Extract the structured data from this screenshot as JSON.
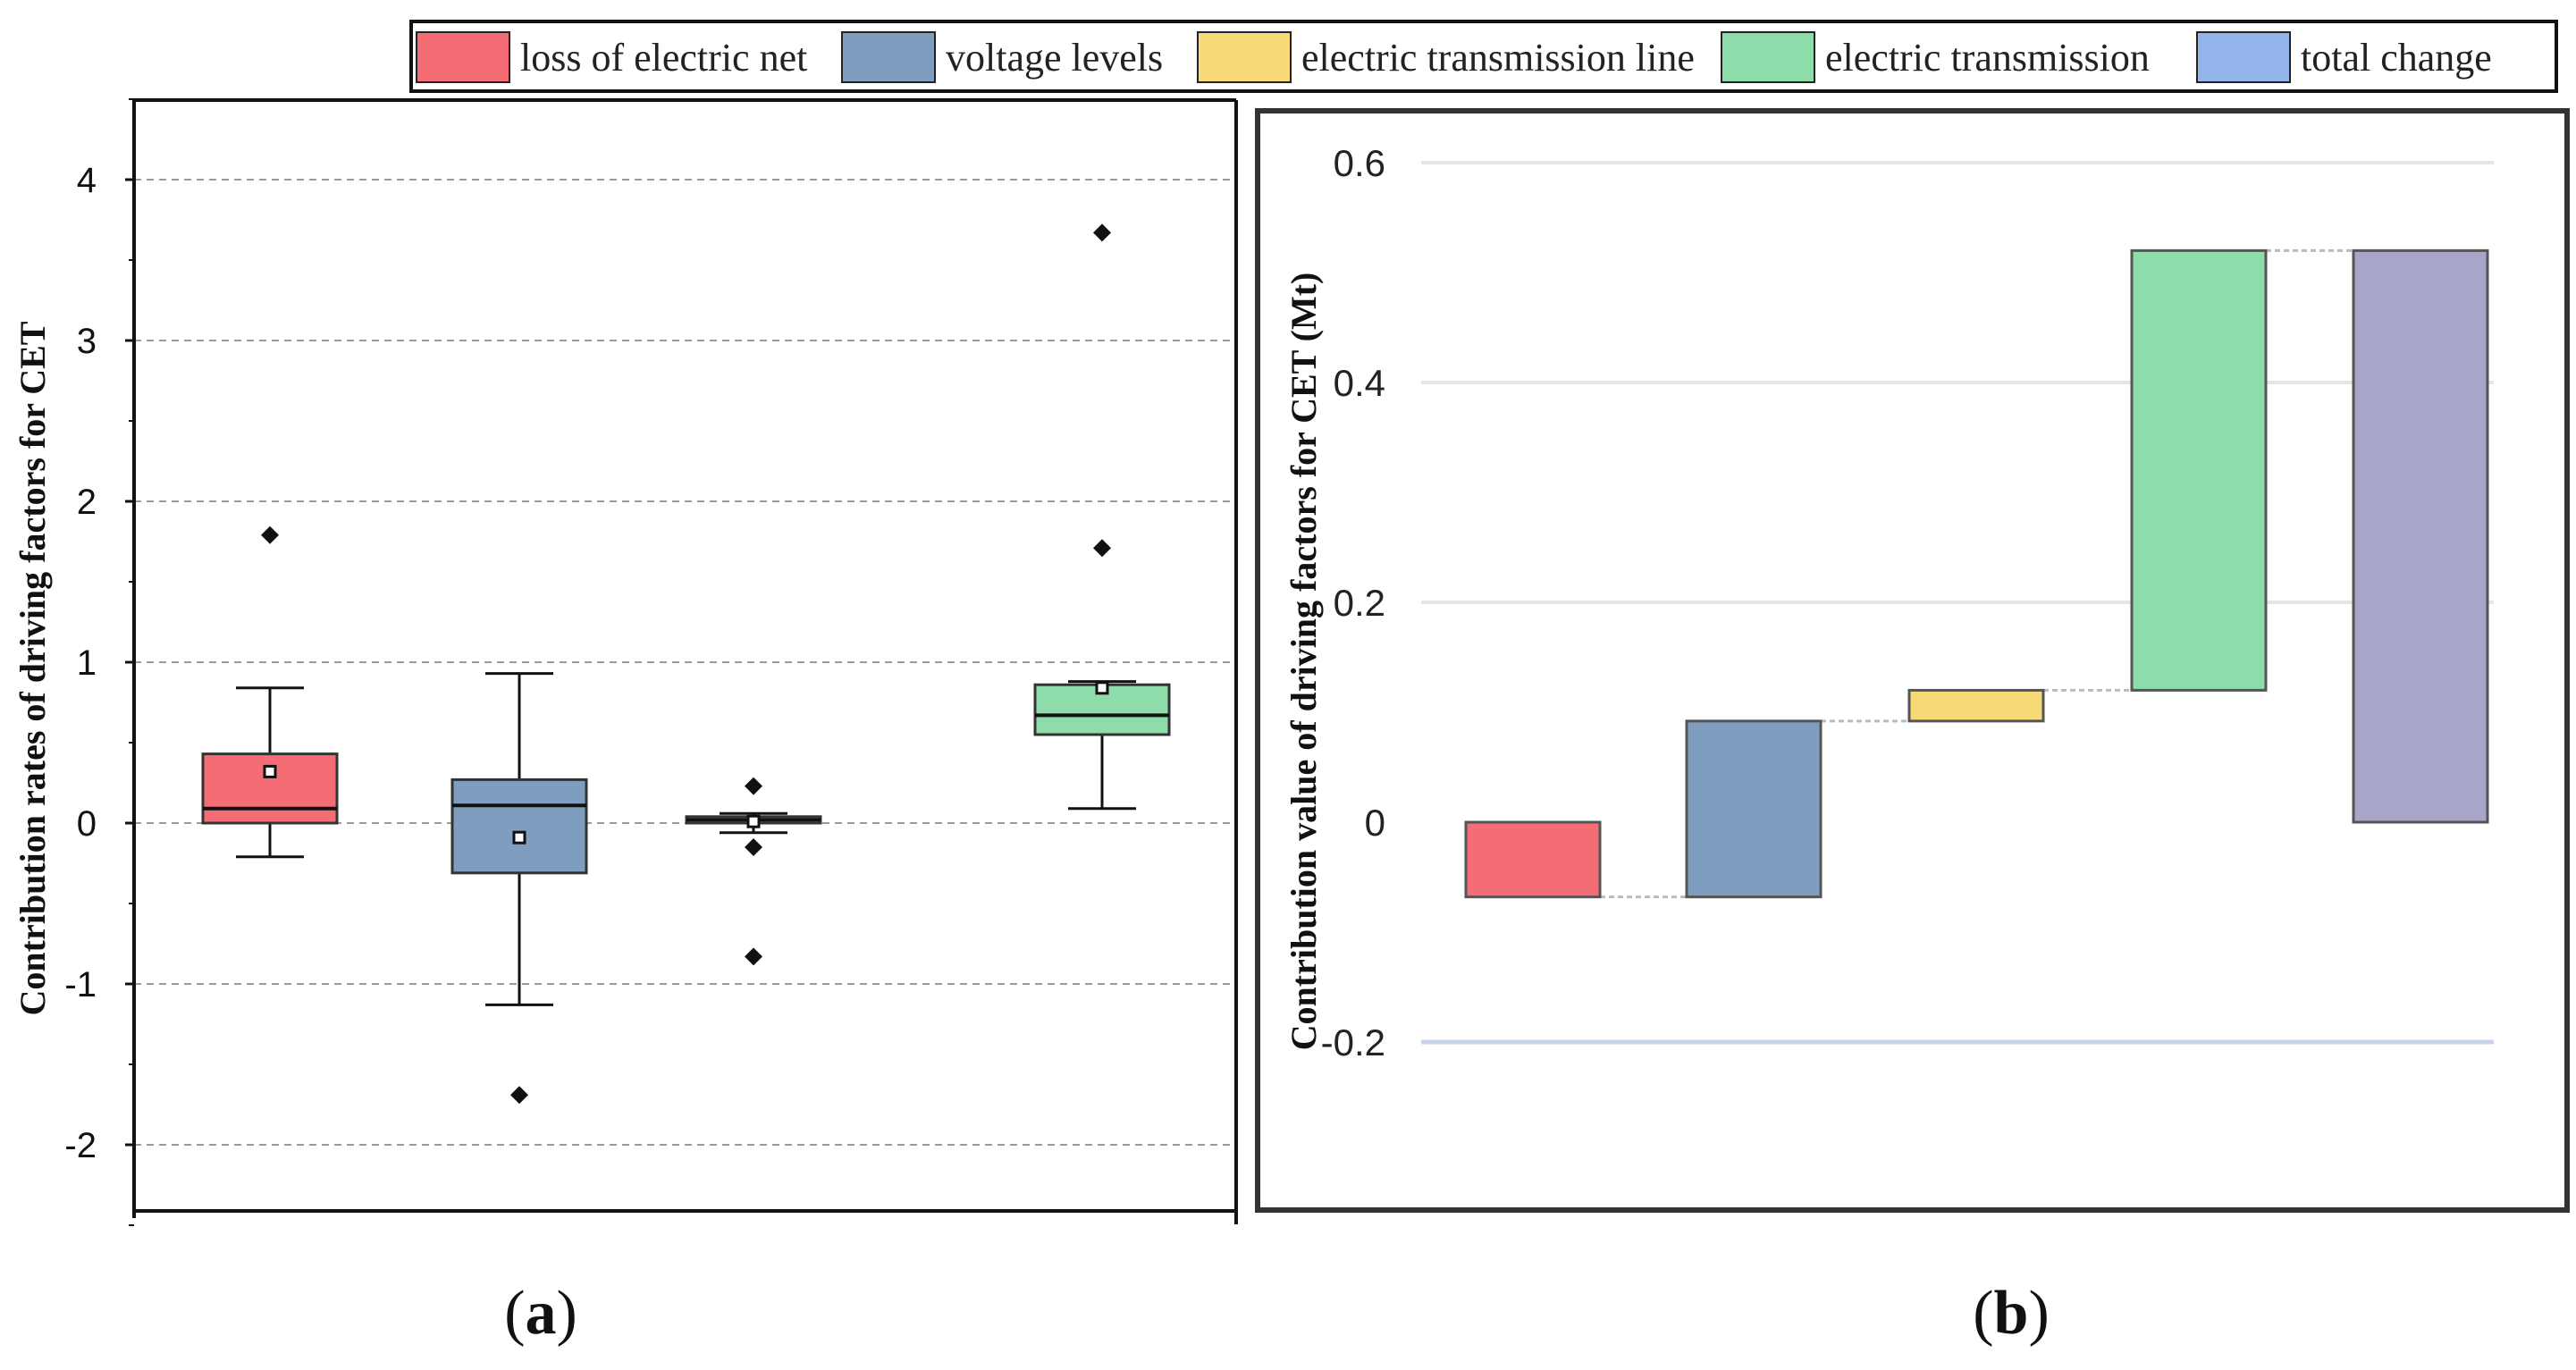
{
  "legend": [
    {
      "label": "loss of electric net",
      "color": "#f46d75"
    },
    {
      "label": "voltage levels",
      "color": "#7f9ebf"
    },
    {
      "label": "electric transmission line",
      "color": "#f7d977"
    },
    {
      "label": "electric transmission",
      "color": "#8edcaa"
    },
    {
      "label": "total change",
      "color": "#93b4ea"
    }
  ],
  "panels": {
    "a": {
      "label_open": "(",
      "label_letter": "a",
      "label_close": ")"
    },
    "b": {
      "label_open": "(",
      "label_letter": "b",
      "label_close": ")"
    }
  },
  "chart_data": [
    {
      "type": "box",
      "id": "a",
      "ylabel": "Contribution rates of driving factors for CET",
      "ylim": [
        -2.4,
        4.5
      ],
      "yticks": [
        -2,
        -1,
        0,
        1,
        2,
        3,
        4
      ],
      "grid": "horizontal dashed",
      "series": [
        {
          "name": "loss of electric net",
          "color": "#f46d75",
          "whisker_low": -0.21,
          "q1": 0.0,
          "median": 0.09,
          "q3": 0.43,
          "whisker_high": 0.84,
          "mean": 0.32,
          "outliers": [
            1.79
          ]
        },
        {
          "name": "voltage levels",
          "color": "#7f9ebf",
          "whisker_low": -1.13,
          "q1": -0.31,
          "median": 0.11,
          "q3": 0.27,
          "whisker_high": 0.93,
          "mean": -0.09,
          "outliers": [
            -1.69
          ]
        },
        {
          "name": "electric transmission line",
          "color": "#f7d977",
          "whisker_low": -0.06,
          "q1": 0.0,
          "median": 0.02,
          "q3": 0.04,
          "whisker_high": 0.06,
          "mean": 0.01,
          "outliers": [
            0.23,
            -0.15,
            -0.83
          ]
        },
        {
          "name": "electric transmission",
          "color": "#8edcaa",
          "whisker_low": 0.09,
          "q1": 0.55,
          "median": 0.67,
          "q3": 0.86,
          "whisker_high": 0.88,
          "mean": 0.84,
          "outliers": [
            3.67,
            1.71
          ]
        }
      ]
    },
    {
      "type": "waterfall",
      "id": "b",
      "ylabel": "Contribution value of driving factors for CET (Mt)",
      "ylim": [
        -0.27,
        0.63
      ],
      "yticks": [
        -0.2,
        0,
        0.2,
        0.4,
        0.6
      ],
      "ytick_labels": [
        "-0.2",
        "0",
        "0.2",
        "0.4",
        "0.6"
      ],
      "categories": [
        "loss of electric net",
        "voltage levels",
        "electric transmission line",
        "electric transmission",
        "total change"
      ],
      "bars": [
        {
          "name": "loss of electric net",
          "start": 0.0,
          "end": -0.068,
          "color": "#f46d75"
        },
        {
          "name": "voltage levels",
          "start": -0.068,
          "end": 0.092,
          "color": "#7f9ebf"
        },
        {
          "name": "electric transmission line",
          "start": 0.092,
          "end": 0.12,
          "color": "#f7d977"
        },
        {
          "name": "electric transmission",
          "start": 0.12,
          "end": 0.52,
          "color": "#8edcaa"
        },
        {
          "name": "total change",
          "start": 0.0,
          "end": 0.52,
          "color": "#a7a6c8"
        }
      ]
    }
  ]
}
